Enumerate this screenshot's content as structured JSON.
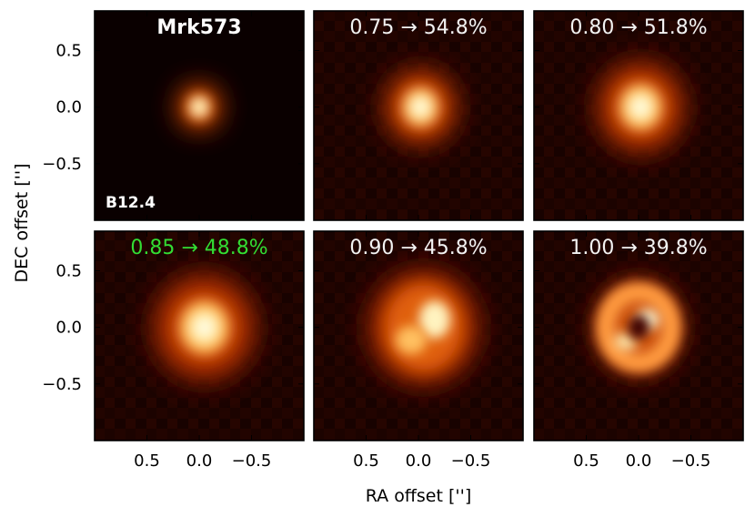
{
  "chart_data": {
    "type": "heatmap",
    "layout": "2x3 grid",
    "colormap": "hot (black-red-orange-white)",
    "xlabel": "RA offset ['']",
    "ylabel": "DEC offset ['']",
    "x_ticks": [
      "0.5",
      "0.0",
      "−0.5"
    ],
    "x_tick_values": [
      0.5,
      0.0,
      -0.5
    ],
    "y_ticks": [
      "0.5",
      "0.0",
      "−0.5"
    ],
    "y_tick_values": [
      0.5,
      0.0,
      -0.5
    ],
    "xlim": [
      1.0,
      -1.0
    ],
    "ylim": [
      -1.0,
      0.85
    ],
    "panels": [
      {
        "title": "Mrk573",
        "title_color": "#ffffff",
        "bold": true,
        "annotation": "B12.4",
        "morphology": "compact point source",
        "center": [
          0.0,
          0.0
        ],
        "size": 0.12
      },
      {
        "title": "0.75 → 54.8%",
        "title_color": "#f2f2f2",
        "morphology": "extended blob",
        "center": [
          -0.02,
          0.0
        ],
        "size": 0.2
      },
      {
        "title": "0.80 → 51.8%",
        "title_color": "#f2f2f2",
        "morphology": "extended blob",
        "center": [
          -0.02,
          0.0
        ],
        "size": 0.24
      },
      {
        "title": "0.85 → 48.8%",
        "title_color": "#33dd33",
        "morphology": "elongated blob",
        "center": [
          -0.05,
          0.0
        ],
        "size": 0.28
      },
      {
        "title": "0.90 → 45.8%",
        "title_color": "#f2f2f2",
        "morphology": "blob with two lobes",
        "center": [
          -0.05,
          0.0
        ],
        "size": 0.3
      },
      {
        "title": "1.00 → 39.8%",
        "title_color": "#f2f2f2",
        "morphology": "ring",
        "center": [
          0.0,
          0.0
        ],
        "size": 0.25
      }
    ]
  }
}
